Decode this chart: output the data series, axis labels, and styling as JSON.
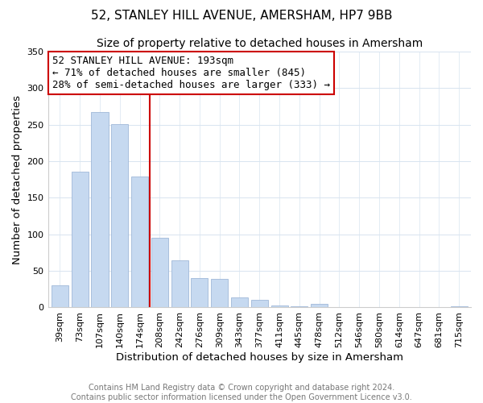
{
  "title": "52, STANLEY HILL AVENUE, AMERSHAM, HP7 9BB",
  "subtitle": "Size of property relative to detached houses in Amersham",
  "xlabel": "Distribution of detached houses by size in Amersham",
  "ylabel": "Number of detached properties",
  "bar_labels": [
    "39sqm",
    "73sqm",
    "107sqm",
    "140sqm",
    "174sqm",
    "208sqm",
    "242sqm",
    "276sqm",
    "309sqm",
    "343sqm",
    "377sqm",
    "411sqm",
    "445sqm",
    "478sqm",
    "512sqm",
    "546sqm",
    "580sqm",
    "614sqm",
    "647sqm",
    "681sqm",
    "715sqm"
  ],
  "bar_values": [
    30,
    186,
    267,
    251,
    179,
    95,
    65,
    40,
    39,
    14,
    10,
    3,
    2,
    5,
    1,
    1,
    0,
    0,
    0,
    0,
    2
  ],
  "bar_color": "#c6d9f0",
  "bar_edge_color": "#a0b8d8",
  "vline_x_index": 4,
  "vline_color": "#cc0000",
  "ylim": [
    0,
    350
  ],
  "yticks": [
    0,
    50,
    100,
    150,
    200,
    250,
    300,
    350
  ],
  "annotation_line1": "52 STANLEY HILL AVENUE: 193sqm",
  "annotation_line2": "← 71% of detached houses are smaller (845)",
  "annotation_line3": "28% of semi-detached houses are larger (333) →",
  "footer_line1": "Contains HM Land Registry data © Crown copyright and database right 2024.",
  "footer_line2": "Contains public sector information licensed under the Open Government Licence v3.0.",
  "title_fontsize": 11,
  "subtitle_fontsize": 10,
  "axis_label_fontsize": 9.5,
  "tick_fontsize": 8,
  "annotation_fontsize": 9,
  "footer_fontsize": 7,
  "background_color": "#ffffff",
  "grid_color": "#d8e4f0"
}
